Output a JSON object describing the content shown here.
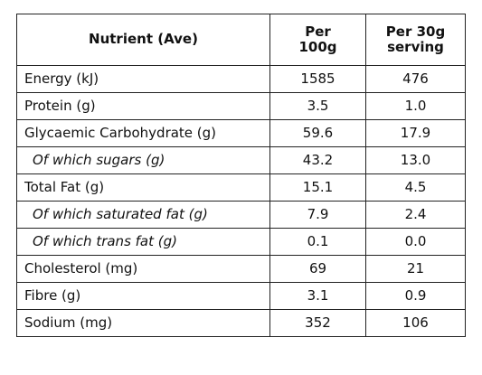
{
  "table": {
    "headers": {
      "nutrient": "Nutrient (Ave)",
      "per100_line1": "Per",
      "per100_line2": "100g",
      "serving_line1": "Per 30g",
      "serving_line2": "serving"
    },
    "rows": [
      {
        "label": "Energy (kJ)",
        "per100": "1585",
        "per_serving": "476",
        "italic": false
      },
      {
        "label": "Protein (g)",
        "per100": "3.5",
        "per_serving": "1.0",
        "italic": false
      },
      {
        "label": "Glycaemic Carbohydrate (g)",
        "per100": "59.6",
        "per_serving": "17.9",
        "italic": false
      },
      {
        "label": "Of which sugars (g)",
        "per100": "43.2",
        "per_serving": "13.0",
        "italic": true
      },
      {
        "label": "Total Fat (g)",
        "per100": "15.1",
        "per_serving": "4.5",
        "italic": false
      },
      {
        "label": "Of which saturated fat (g)",
        "per100": "7.9",
        "per_serving": "2.4",
        "italic": true
      },
      {
        "label": "Of which trans fat (g)",
        "per100": "0.1",
        "per_serving": "0.0",
        "italic": true
      },
      {
        "label": "Cholesterol (mg)",
        "per100": "69",
        "per_serving": "21",
        "italic": false
      },
      {
        "label": "Fibre (g)",
        "per100": "3.1",
        "per_serving": "0.9",
        "italic": false
      },
      {
        "label": "Sodium (mg)",
        "per100": "352",
        "per_serving": "106",
        "italic": false
      }
    ]
  }
}
